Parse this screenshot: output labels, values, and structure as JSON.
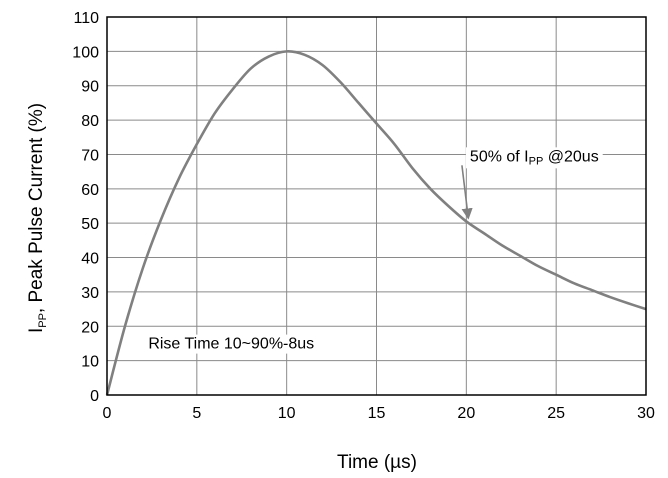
{
  "chart_data": {
    "type": "line",
    "title": "",
    "xlabel": "Time (µs)",
    "ylabel": {
      "prefix": "I",
      "sub": "PP",
      "rest": ", Peak Pulse Current (%)"
    },
    "xlim": [
      0,
      30
    ],
    "ylim": [
      0,
      110
    ],
    "x_ticks": [
      0,
      5,
      10,
      15,
      20,
      25,
      30
    ],
    "y_ticks": [
      0,
      10,
      20,
      30,
      40,
      50,
      60,
      70,
      80,
      90,
      100,
      110
    ],
    "grid": true,
    "series": [
      {
        "color": "#808080",
        "points": [
          [
            0,
            0
          ],
          [
            1,
            20
          ],
          [
            2,
            37
          ],
          [
            3,
            51
          ],
          [
            4,
            63
          ],
          [
            5,
            73
          ],
          [
            6,
            82
          ],
          [
            7,
            89
          ],
          [
            8,
            95
          ],
          [
            9,
            98.5
          ],
          [
            10,
            100
          ],
          [
            11,
            99
          ],
          [
            12,
            96
          ],
          [
            13,
            91
          ],
          [
            14,
            85
          ],
          [
            15,
            79
          ],
          [
            16,
            73
          ],
          [
            17,
            66
          ],
          [
            18,
            60
          ],
          [
            19,
            55
          ],
          [
            20,
            50.5
          ],
          [
            21,
            47
          ],
          [
            22,
            43.5
          ],
          [
            23,
            40.5
          ],
          [
            24,
            37.5
          ],
          [
            25,
            35
          ],
          [
            26,
            32.5
          ],
          [
            27,
            30.5
          ],
          [
            28,
            28.5
          ],
          [
            29,
            26.7
          ],
          [
            30,
            25
          ]
        ]
      }
    ],
    "annotations": [
      {
        "id": "half-peak",
        "text_prefix": "50% of I",
        "text_sub": "PP",
        "text_suffix": " @20us",
        "label_at": [
          20.2,
          68
        ],
        "arrow_to": [
          20,
          50.5
        ]
      },
      {
        "id": "rise-time",
        "text": "Rise Time 10~90%-8us",
        "label_at": [
          2.3,
          13.5
        ]
      }
    ]
  }
}
